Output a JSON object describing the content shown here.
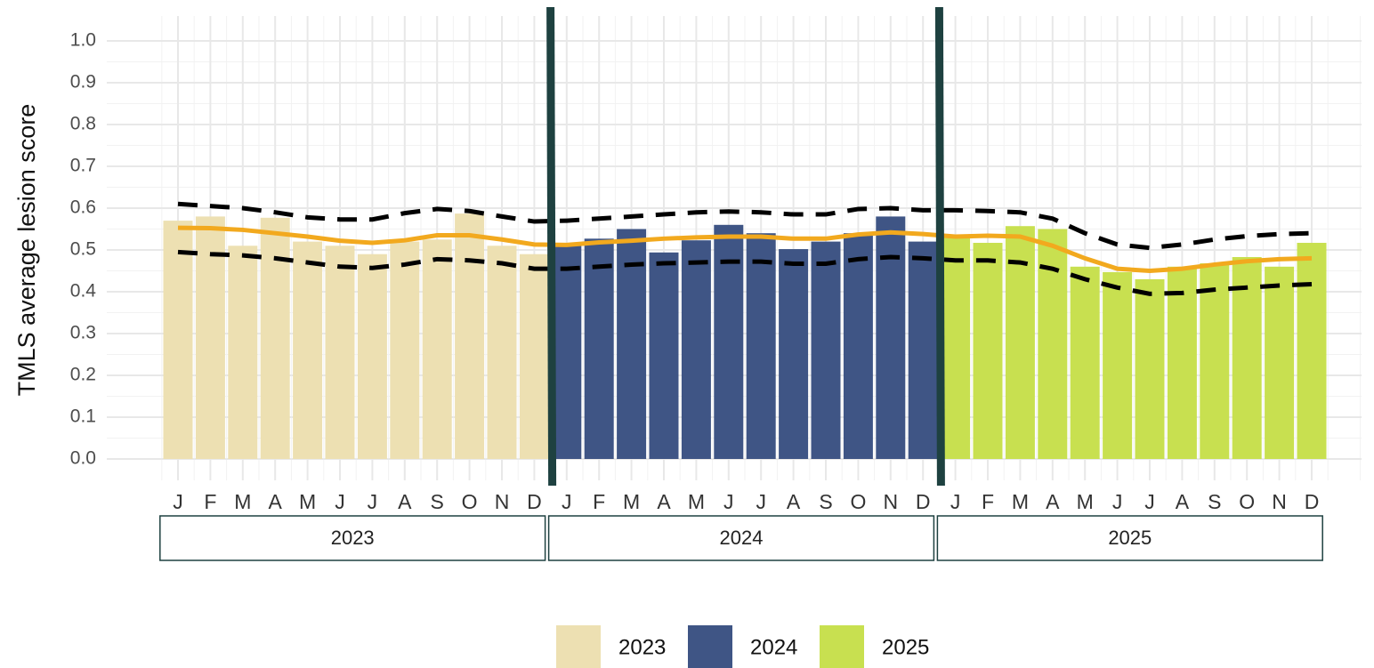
{
  "chart_data": {
    "type": "bar",
    "y_label": "TMLS average lesion score",
    "categories": [
      "J",
      "F",
      "M",
      "A",
      "M",
      "J",
      "J",
      "A",
      "S",
      "O",
      "N",
      "D"
    ],
    "groups": [
      "2023",
      "2024",
      "2025"
    ],
    "ylim": [
      0,
      1.0
    ],
    "yticks": [
      {
        "value": 0,
        "label": "0.0"
      },
      {
        "value": 0.1,
        "label": "0.1"
      },
      {
        "value": 0.2,
        "label": "0.2"
      },
      {
        "value": 0.3,
        "label": "0.3"
      },
      {
        "value": 0.4,
        "label": "0.4"
      },
      {
        "value": 0.5,
        "label": "0.5"
      },
      {
        "value": 0.6,
        "label": "0.6"
      },
      {
        "value": 0.7,
        "label": "0.7"
      },
      {
        "value": 0.8,
        "label": "0.8"
      },
      {
        "value": 0.9,
        "label": "0.9"
      },
      {
        "value": 1.0,
        "label": "1.0"
      }
    ],
    "grid": true,
    "series": [
      {
        "name": "2023",
        "color": "#ede0b2",
        "values": [
          0.57,
          0.58,
          0.51,
          0.577,
          0.52,
          0.51,
          0.49,
          0.52,
          0.525,
          0.587,
          0.51,
          0.49
        ]
      },
      {
        "name": "2024",
        "color": "#3f5585",
        "values": [
          0.51,
          0.527,
          0.55,
          0.494,
          0.523,
          0.56,
          0.54,
          0.502,
          0.52,
          0.54,
          0.58,
          0.52
        ]
      },
      {
        "name": "2025",
        "color": "#c8e050",
        "values": [
          0.53,
          0.517,
          0.557,
          0.55,
          0.46,
          0.447,
          0.43,
          0.46,
          0.468,
          0.483,
          0.46,
          0.517
        ]
      }
    ],
    "trend": {
      "color": "#f2a91e",
      "values": [
        0.553,
        0.552,
        0.548,
        0.54,
        0.532,
        0.522,
        0.517,
        0.523,
        0.535,
        0.535,
        0.525,
        0.513,
        0.512,
        0.518,
        0.522,
        0.527,
        0.53,
        0.532,
        0.532,
        0.527,
        0.527,
        0.537,
        0.542,
        0.538,
        0.532,
        0.534,
        0.532,
        0.51,
        0.48,
        0.455,
        0.45,
        0.455,
        0.465,
        0.473,
        0.478,
        0.48
      ]
    },
    "upper": {
      "color": "#000000",
      "values": [
        0.61,
        0.605,
        0.6,
        0.59,
        0.578,
        0.573,
        0.573,
        0.588,
        0.598,
        0.593,
        0.58,
        0.568,
        0.57,
        0.575,
        0.58,
        0.585,
        0.59,
        0.592,
        0.59,
        0.585,
        0.585,
        0.598,
        0.6,
        0.595,
        0.595,
        0.593,
        0.59,
        0.575,
        0.54,
        0.513,
        0.505,
        0.513,
        0.525,
        0.533,
        0.538,
        0.54
      ]
    },
    "lower": {
      "color": "#000000",
      "values": [
        0.495,
        0.49,
        0.487,
        0.48,
        0.47,
        0.46,
        0.457,
        0.465,
        0.478,
        0.475,
        0.468,
        0.455,
        0.455,
        0.46,
        0.465,
        0.468,
        0.47,
        0.472,
        0.472,
        0.467,
        0.467,
        0.478,
        0.483,
        0.48,
        0.475,
        0.475,
        0.47,
        0.455,
        0.43,
        0.41,
        0.395,
        0.397,
        0.405,
        0.41,
        0.415,
        0.418
      ]
    },
    "divider_color": "#1e4140"
  }
}
